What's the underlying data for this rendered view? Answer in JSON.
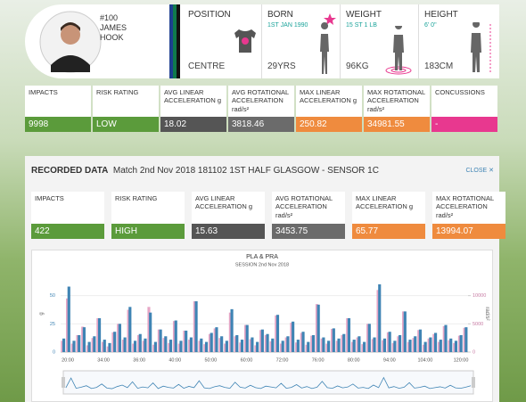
{
  "profile": {
    "number": "#100",
    "first_name": "JAMES",
    "last_name": "HOOK"
  },
  "info": [
    {
      "label": "POSITION",
      "value": "CENTRE"
    },
    {
      "label": "BORN",
      "sub": "1ST JAN 1990",
      "value": "29YRS"
    },
    {
      "label": "WEIGHT",
      "sub": "15 ST 1 LB",
      "value": "96KG"
    },
    {
      "label": "HEIGHT",
      "sub": "6' 0\"",
      "value": "183CM"
    }
  ],
  "season_stats": [
    {
      "label": "IMPACTS",
      "value": 9998,
      "color": "#5b9b3b"
    },
    {
      "label": "RISK RATING",
      "value": "LOW",
      "color": "#5b9b3b"
    },
    {
      "label": "AVG LINEAR ACCELERATION g",
      "value": 18.02,
      "color": "#555555"
    },
    {
      "label": "AVG ROTATIONAL ACCELERATION rad/s²",
      "value": 3818.46,
      "color": "#6b6b6b"
    },
    {
      "label": "MAX LINEAR ACCELERATION g",
      "value": 250.82,
      "color": "#ef8b3e"
    },
    {
      "label": "MAX ROTATIONAL ACCELERATION rad/s²",
      "value": 34981.55,
      "color": "#ef8b3e"
    },
    {
      "label": "CONCUSSIONS",
      "value": "-",
      "color": "#e8388f"
    }
  ],
  "recorded": {
    "heading": "RECORDED DATA",
    "session": "Match 2nd Nov 2018 181102 1ST HALF GLASGOW - SENSOR 1C",
    "close": "CLOSE",
    "stats": [
      {
        "label": "IMPACTS",
        "value": 422,
        "color": "#5b9b3b"
      },
      {
        "label": "RISK RATING",
        "value": "HIGH",
        "color": "#5b9b3b"
      },
      {
        "label": "AVG LINEAR ACCELERATION g",
        "value": 15.63,
        "color": "#555555"
      },
      {
        "label": "AVG ROTATIONAL ACCELERATION rad/s²",
        "value": 3453.75,
        "color": "#6b6b6b"
      },
      {
        "label": "MAX LINEAR ACCELERATION g",
        "value": 65.77,
        "color": "#ef8b3e"
      },
      {
        "label": "MAX ROTATIONAL ACCELERATION rad/s²",
        "value": 13994.07,
        "color": "#ef8b3e"
      }
    ]
  },
  "chart_data": {
    "type": "bar",
    "title": "PLA & PRA",
    "subtitle": "SESSION 2nd Nov 2018",
    "ylabel": "g",
    "y2label": "rad/s²",
    "xtick_labels": [
      "20:00",
      "34:00",
      "36:00",
      "40:00",
      "50:00",
      "60:00",
      "72:00",
      "76:00",
      "80:00",
      "94:00",
      "104:00",
      "120:00"
    ],
    "ylim": [
      0,
      75
    ],
    "yticks": [
      0,
      25,
      50
    ],
    "y2lim": [
      0,
      15000
    ],
    "y2ticks": [
      0,
      5000,
      10000
    ],
    "series": [
      {
        "color": "#e6a6c6",
        "axis": "y2",
        "values": [
          2000,
          9500,
          1500,
          3000,
          4500,
          1200,
          2500,
          6000,
          1800,
          1000,
          3500,
          5000,
          2200,
          7500,
          1500,
          3000,
          2000,
          8000,
          1300,
          4000,
          2500,
          1600,
          5500,
          1500,
          3800,
          2200,
          9000,
          2000,
          1400,
          3200,
          4200,
          2500,
          1500,
          7000,
          2800,
          1700,
          4800,
          2300,
          1200,
          3900,
          3000,
          1900,
          6500,
          1500,
          2600,
          5200,
          1700,
          3400,
          1300,
          2900,
          8500,
          2400,
          1500,
          4100,
          2000,
          3000,
          6000,
          1800,
          2600,
          1400,
          5000,
          2300,
          11000,
          2100,
          3500,
          1600,
          2800,
          7200,
          1800,
          2500,
          3900,
          1300,
          2400,
          3200,
          1800,
          4600,
          2100,
          1600,
          2900,
          4300
        ]
      },
      {
        "color": "#3f84b4",
        "values": [
          12,
          58,
          10,
          15,
          22,
          9,
          14,
          30,
          11,
          8,
          18,
          25,
          13,
          40,
          10,
          16,
          12,
          35,
          9,
          20,
          14,
          11,
          28,
          10,
          19,
          13,
          45,
          12,
          9,
          17,
          22,
          14,
          10,
          38,
          15,
          11,
          24,
          13,
          9,
          20,
          16,
          12,
          33,
          10,
          14,
          27,
          11,
          18,
          9,
          15,
          42,
          13,
          10,
          21,
          12,
          16,
          30,
          11,
          14,
          9,
          25,
          13,
          60,
          12,
          18,
          10,
          15,
          36,
          11,
          14,
          20,
          9,
          13,
          17,
          11,
          24,
          12,
          10,
          15,
          22
        ]
      }
    ]
  }
}
